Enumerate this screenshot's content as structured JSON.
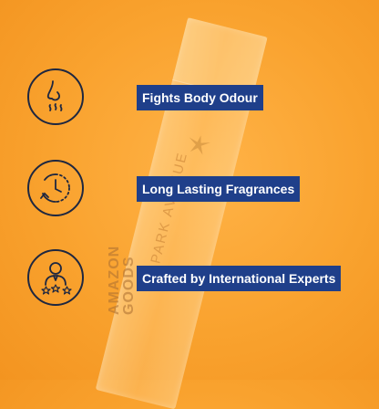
{
  "background_color": "#f9a22e",
  "label_color": "#1f3f8a",
  "product": {
    "bottle_text": "PARK AVENUE",
    "stamp_line1": "AMAZON",
    "stamp_line2": "GOODS",
    "logo_icon": "wing-logo-icon"
  },
  "features": [
    {
      "icon": "nose-icon",
      "label": "Fights Body Odour"
    },
    {
      "icon": "clock-arrow-icon",
      "label": "Long Lasting Fragrances"
    },
    {
      "icon": "expert-rating-icon",
      "label": "Crafted by International Experts"
    }
  ]
}
